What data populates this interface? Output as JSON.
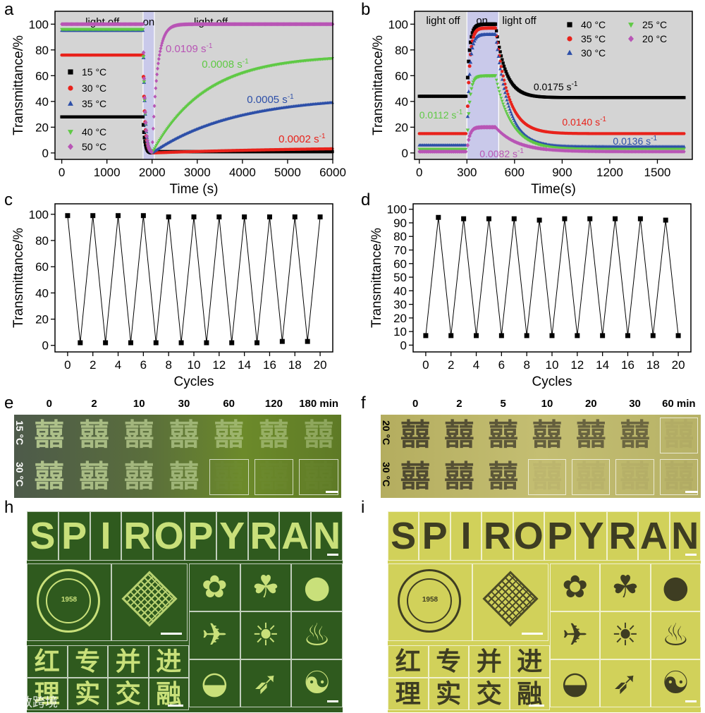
{
  "panel_labels": [
    "a",
    "b",
    "c",
    "d",
    "e",
    "f",
    "h",
    "i"
  ],
  "chart_data": [
    {
      "id": "a",
      "type": "scatter",
      "xlabel": "Time (s)",
      "ylabel": "Transmittance/%",
      "xlim": [
        -150,
        6000
      ],
      "ylim": [
        -5,
        110
      ],
      "xticks": [
        0,
        1000,
        2000,
        3000,
        4000,
        5000,
        6000
      ],
      "yticks": [
        0,
        20,
        40,
        60,
        80,
        100
      ],
      "background": "#d4d4d4",
      "on_region": [
        1800,
        2050
      ],
      "on_region_color": "#c9c9ea",
      "region_labels": [
        "light off",
        "on",
        "light  off"
      ],
      "series": [
        {
          "name": "15 °C",
          "marker": "square",
          "color": "#000000",
          "start": 28,
          "min": 0,
          "final": 1,
          "k": 0.0001
        },
        {
          "name": "30 °C",
          "marker": "circle",
          "color": "#e8221b",
          "start": 76,
          "min": 0,
          "final": 5,
          "k": 0.0002
        },
        {
          "name": "35 °C",
          "marker": "triangle-up",
          "color": "#2d4fa8",
          "start": 95,
          "min": 0,
          "final": 44,
          "k": 0.0005
        },
        {
          "name": "40 °C",
          "marker": "triangle-down",
          "color": "#5fc945",
          "start": 96,
          "min": 0,
          "final": 76,
          "k": 0.0008
        },
        {
          "name": "50 °C",
          "marker": "diamond",
          "color": "#b855b5",
          "start": 100,
          "min": 0,
          "final": 100,
          "k": 0.0109
        }
      ],
      "annotations": [
        {
          "text": "0.0109",
          "sup": "-1",
          "unit": "s",
          "color": "#b855b5"
        },
        {
          "text": "0.0008",
          "sup": "-1",
          "unit": "s",
          "color": "#5fc945"
        },
        {
          "text": "0.0005",
          "sup": "-1",
          "unit": "s",
          "color": "#2d4fa8"
        },
        {
          "text": "0.0002",
          "sup": "-1",
          "unit": "s",
          "color": "#e8221b"
        }
      ]
    },
    {
      "id": "b",
      "type": "scatter",
      "xlabel": "Time(s)",
      "ylabel": "Transmittance/%",
      "xlim": [
        -30,
        1720
      ],
      "ylim": [
        -5,
        110
      ],
      "xticks": [
        0,
        300,
        600,
        900,
        1200,
        1500
      ],
      "yticks": [
        0,
        20,
        40,
        60,
        80,
        100
      ],
      "background": "#d4d4d4",
      "on_region": [
        300,
        500
      ],
      "on_region_color": "#c9c9ea",
      "region_labels": [
        "light off",
        "on",
        "light off"
      ],
      "series": [
        {
          "name": "40 °C",
          "marker": "square",
          "color": "#000000",
          "start": 44,
          "peak": 100,
          "final": 43,
          "k": 0.0175
        },
        {
          "name": "35 °C",
          "marker": "circle",
          "color": "#e8221b",
          "start": 15,
          "peak": 97,
          "final": 15,
          "k": 0.014
        },
        {
          "name": "30 °C",
          "marker": "triangle-up",
          "color": "#2d4fa8",
          "start": 6,
          "peak": 92,
          "final": 5,
          "k": 0.0136
        },
        {
          "name": "25 °C",
          "marker": "triangle-down",
          "color": "#5fc945",
          "start": 3,
          "peak": 60,
          "final": 3,
          "k": 0.0112
        },
        {
          "name": "20 °C",
          "marker": "diamond",
          "color": "#b855b5",
          "start": 1,
          "peak": 20,
          "final": 1,
          "k": 0.0082
        }
      ],
      "annotations": [
        {
          "text": "0.0175 s",
          "sup": "-1",
          "color": "#000000"
        },
        {
          "text": "0.0140 s",
          "sup": "-1",
          "color": "#e8221b"
        },
        {
          "text": "0.0136 s",
          "sup": "-1",
          "color": "#2d4fa8"
        },
        {
          "text": "0.0112 s",
          "sup": "-1",
          "color": "#5fc945"
        },
        {
          "text": "0.0082 s",
          "sup": "-1",
          "color": "#b855b5"
        }
      ]
    },
    {
      "id": "c",
      "type": "line",
      "xlabel": "Cycles",
      "ylabel": "Transmittance/%",
      "xlim": [
        -1,
        21
      ],
      "ylim": [
        -5,
        108
      ],
      "xticks": [
        0,
        2,
        4,
        6,
        8,
        10,
        12,
        14,
        16,
        18,
        20
      ],
      "yticks": [
        0,
        20,
        40,
        60,
        80,
        100
      ],
      "x": [
        0,
        1,
        2,
        3,
        4,
        5,
        6,
        7,
        8,
        9,
        10,
        11,
        12,
        13,
        14,
        15,
        16,
        17,
        18,
        19,
        20
      ],
      "values": [
        99,
        2,
        99,
        2,
        99,
        2,
        99,
        2,
        98,
        2,
        98,
        2,
        98,
        2,
        98,
        2,
        98,
        3,
        98,
        3,
        98
      ]
    },
    {
      "id": "d",
      "type": "line",
      "xlabel": "Cycles",
      "ylabel": "Transmittance/%",
      "xlim": [
        -1,
        21
      ],
      "ylim": [
        -5,
        104
      ],
      "xticks": [
        0,
        2,
        4,
        6,
        8,
        10,
        12,
        14,
        16,
        18,
        20
      ],
      "yticks": [
        0,
        10,
        20,
        30,
        40,
        50,
        60,
        70,
        80,
        90,
        100
      ],
      "x": [
        0,
        1,
        2,
        3,
        4,
        5,
        6,
        7,
        8,
        9,
        10,
        11,
        12,
        13,
        14,
        15,
        16,
        17,
        18,
        19,
        20
      ],
      "values": [
        7,
        94,
        7,
        93,
        7,
        93,
        7,
        93,
        7,
        92,
        7,
        93,
        7,
        93,
        7,
        93,
        7,
        93,
        7,
        92,
        7
      ]
    }
  ],
  "photo_e": {
    "headers": [
      "0",
      "2",
      "10",
      "30",
      "60",
      "120",
      "180 min"
    ],
    "rows": [
      "15 °C",
      "30 °C"
    ],
    "glyph": "囍",
    "bg": "#2c3a24"
  },
  "photo_f": {
    "headers": [
      "0",
      "2",
      "5",
      "10",
      "20",
      "30",
      "60 min"
    ],
    "rows": [
      "20 °C",
      "30 °C"
    ],
    "glyph": "囍",
    "bg": "#a8a460"
  },
  "photo_h": {
    "letters": [
      "S",
      "P",
      "I",
      "R",
      "O",
      "P",
      "Y",
      "R",
      "A",
      "N"
    ],
    "chars": [
      "红",
      "专",
      "并",
      "进",
      "理",
      "实",
      "交",
      "融"
    ],
    "symbols": [
      "✿",
      "☘",
      "●",
      "✈",
      "☀",
      "♨",
      "◒",
      "➶",
      "☯"
    ],
    "seal_year": "1958",
    "bg": "#2f5a1e",
    "fg": "#c9e07a"
  },
  "photo_i": {
    "letters": [
      "S",
      "P",
      "I",
      "R",
      "O",
      "P",
      "Y",
      "R",
      "A",
      "N"
    ],
    "chars": [
      "红",
      "专",
      "并",
      "进",
      "理",
      "实",
      "交",
      "融"
    ],
    "symbols": [
      "✿",
      "☘",
      "●",
      "✈",
      "☀",
      "♨",
      "◒",
      "➶",
      "☯"
    ],
    "seal_year": "1958",
    "bg": "#d1d15a",
    "fg": "#3e3d22"
  },
  "watermark": "大数跨境"
}
